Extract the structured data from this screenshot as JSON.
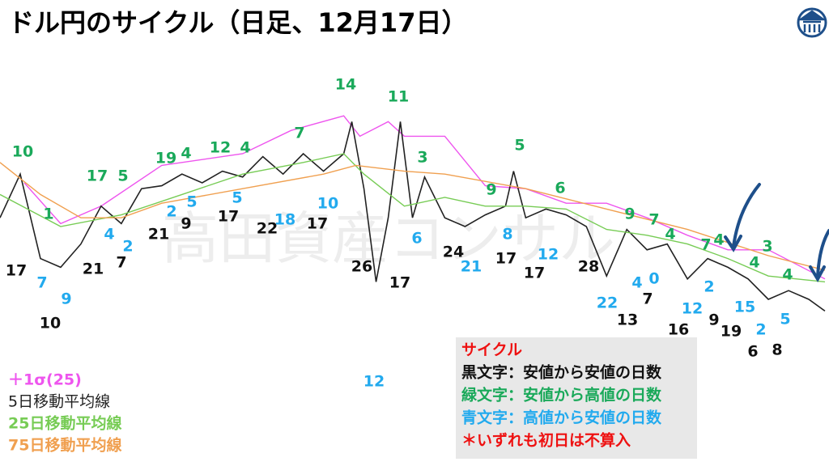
{
  "chart_data": {
    "type": "line",
    "title": "ドル円のサイクル（日足、12月17日）",
    "watermark": "高田資産コンサル",
    "xlim": [
      0,
      205
    ],
    "ylim": [
      0,
      100
    ],
    "series": [
      {
        "name": "＋1σ(25)",
        "color": "#ee55ee",
        "x": [
          6,
          15,
          25,
          40,
          60,
          72,
          85,
          89,
          96,
          100,
          110,
          120,
          130,
          140,
          150,
          160,
          170,
          180,
          190,
          204
        ],
        "values": [
          65,
          51,
          57,
          71,
          75,
          83,
          88,
          81,
          86,
          81,
          81,
          64,
          63,
          58,
          58,
          53,
          47,
          42,
          42,
          32
        ]
      },
      {
        "name": "5日移動平均線",
        "color": "#222222",
        "x": [
          0,
          5,
          10,
          15,
          20,
          25,
          30,
          35,
          40,
          45,
          50,
          55,
          60,
          65,
          70,
          75,
          80,
          85,
          87,
          90,
          93,
          96,
          99,
          102,
          105,
          110,
          115,
          120,
          125,
          127,
          130,
          135,
          140,
          145,
          150,
          155,
          160,
          165,
          170,
          175,
          180,
          185,
          190,
          195,
          200,
          204
        ],
        "values": [
          53,
          68,
          39,
          36,
          44,
          57,
          51,
          63,
          64,
          68,
          65,
          69,
          67,
          74,
          68,
          75,
          69,
          75,
          86,
          63,
          31,
          53,
          86,
          53,
          67,
          53,
          50,
          54,
          57,
          69,
          53,
          56,
          54,
          50,
          33,
          49,
          42,
          44,
          32,
          39,
          36,
          32,
          25,
          28,
          25,
          21
        ]
      },
      {
        "name": "25日移動平均線",
        "color": "#77cc55",
        "x": [
          0,
          15,
          30,
          45,
          60,
          75,
          85,
          90,
          100,
          110,
          120,
          130,
          140,
          150,
          160,
          170,
          180,
          190,
          204
        ],
        "values": [
          61,
          50,
          54,
          61,
          68,
          72,
          75,
          68,
          57,
          60,
          57,
          57,
          56,
          49,
          47,
          44,
          39,
          33,
          31
        ]
      },
      {
        "name": "75日移動平均線",
        "color": "#f0a050",
        "x": [
          0,
          10,
          20,
          30,
          40,
          60,
          80,
          88,
          100,
          110,
          130,
          150,
          170,
          190,
          204
        ],
        "values": [
          72,
          61,
          53,
          53,
          58,
          63,
          68,
          71,
          69,
          68,
          63,
          56,
          49,
          40,
          35
        ]
      }
    ],
    "cycles": {
      "green": [
        10,
        1,
        17,
        5,
        19,
        4,
        12,
        4,
        7,
        14,
        11,
        3,
        9,
        5,
        6,
        9,
        7,
        4,
        7,
        4,
        4,
        3,
        4
      ],
      "blue": [
        7,
        9,
        4,
        2,
        2,
        5,
        5,
        18,
        10,
        6,
        21,
        8,
        12,
        22,
        4,
        0,
        12,
        2,
        15,
        2,
        5,
        12
      ],
      "black": [
        17,
        10,
        21,
        7,
        21,
        9,
        17,
        22,
        17,
        26,
        17,
        24,
        17,
        17,
        28,
        7,
        13,
        16,
        9,
        19,
        6,
        8
      ]
    },
    "cycle_colors": {
      "green": "#1aa95a",
      "blue": "#22aaee",
      "black": "#111111"
    },
    "key": {
      "title": "サイクル",
      "black": "黒文字：安値から安値の日数",
      "green": "緑文字：安値から高値の日数",
      "blue": "青文字：高値から安値の日数",
      "note": "＊いずれも初日は不算入"
    }
  }
}
